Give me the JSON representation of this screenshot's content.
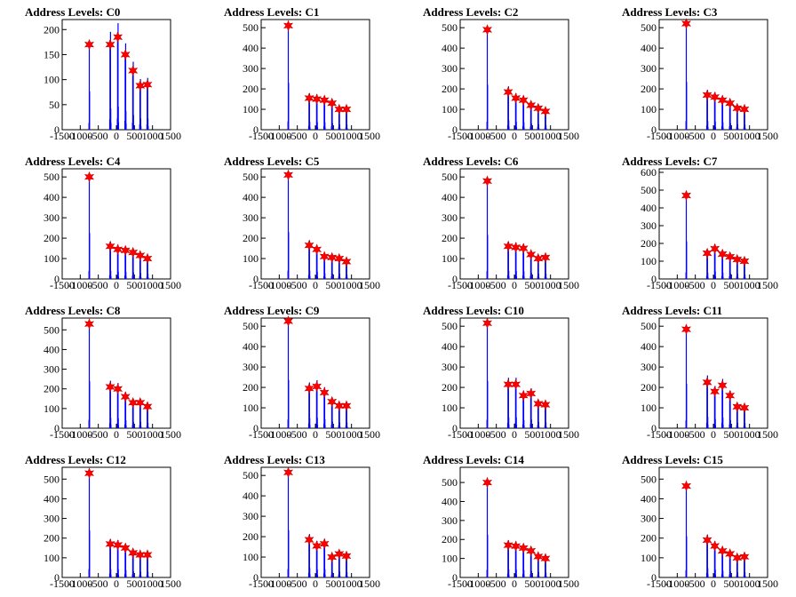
{
  "chart_data": [
    {
      "type": "bar",
      "title": "Address Levels: C0",
      "xlim": [
        -1500,
        1500
      ],
      "ylim": [
        0,
        220
      ],
      "yticks": [
        0,
        50,
        100,
        150,
        200
      ],
      "xticks": [
        -1500,
        -1000,
        -500,
        0,
        500,
        1000,
        1500
      ],
      "peaks_x": [
        -750,
        -170,
        40,
        250,
        460,
        660,
        860
      ],
      "peaks_y": [
        170,
        170,
        185,
        150,
        118,
        88,
        90
      ]
    },
    {
      "type": "bar",
      "title": "Address Levels: C1",
      "xlim": [
        -1500,
        1500
      ],
      "ylim": [
        0,
        540
      ],
      "yticks": [
        0,
        100,
        200,
        300,
        400,
        500
      ],
      "xticks": [
        -1500,
        -1000,
        -500,
        0,
        500,
        1000,
        1500
      ],
      "peaks_x": [
        -750,
        -170,
        40,
        250,
        460,
        660,
        860
      ],
      "peaks_y": [
        510,
        155,
        150,
        145,
        130,
        100,
        100
      ]
    },
    {
      "type": "bar",
      "title": "Address Levels: C2",
      "xlim": [
        -1500,
        1500
      ],
      "ylim": [
        0,
        540
      ],
      "yticks": [
        0,
        100,
        200,
        300,
        400,
        500
      ],
      "xticks": [
        -1500,
        -1000,
        -500,
        0,
        500,
        1000,
        1500
      ],
      "peaks_x": [
        -750,
        -170,
        40,
        250,
        460,
        660,
        860
      ],
      "peaks_y": [
        490,
        185,
        155,
        145,
        120,
        105,
        90
      ]
    },
    {
      "type": "bar",
      "title": "Address Levels: C3",
      "xlim": [
        -1500,
        1500
      ],
      "ylim": [
        0,
        540
      ],
      "yticks": [
        0,
        100,
        200,
        300,
        400,
        500
      ],
      "xticks": [
        -1500,
        -1000,
        -500,
        0,
        500,
        1000,
        1500
      ],
      "peaks_x": [
        -750,
        -170,
        40,
        250,
        460,
        660,
        860
      ],
      "peaks_y": [
        520,
        170,
        160,
        145,
        130,
        105,
        100
      ]
    },
    {
      "type": "bar",
      "title": "Address Levels: C4",
      "xlim": [
        -1500,
        1500
      ],
      "ylim": [
        0,
        540
      ],
      "yticks": [
        0,
        100,
        200,
        300,
        400,
        500
      ],
      "xticks": [
        -1500,
        -1000,
        -500,
        0,
        500,
        1000,
        1500
      ],
      "peaks_x": [
        -750,
        -170,
        40,
        250,
        460,
        660,
        860
      ],
      "peaks_y": [
        500,
        160,
        145,
        140,
        130,
        115,
        100
      ]
    },
    {
      "type": "bar",
      "title": "Address Levels: C5",
      "xlim": [
        -1500,
        1500
      ],
      "ylim": [
        0,
        540
      ],
      "yticks": [
        0,
        100,
        200,
        300,
        400,
        500
      ],
      "xticks": [
        -1500,
        -1000,
        -500,
        0,
        500,
        1000,
        1500
      ],
      "peaks_x": [
        -750,
        -170,
        40,
        250,
        460,
        660,
        860
      ],
      "peaks_y": [
        510,
        165,
        145,
        110,
        105,
        100,
        85
      ]
    },
    {
      "type": "bar",
      "title": "Address Levels: C6",
      "xlim": [
        -1500,
        1500
      ],
      "ylim": [
        0,
        540
      ],
      "yticks": [
        0,
        100,
        200,
        300,
        400,
        500
      ],
      "xticks": [
        -1500,
        -1000,
        -500,
        0,
        500,
        1000,
        1500
      ],
      "peaks_x": [
        -750,
        -170,
        40,
        250,
        460,
        660,
        860
      ],
      "peaks_y": [
        480,
        160,
        155,
        150,
        120,
        100,
        105
      ]
    },
    {
      "type": "bar",
      "title": "Address Levels: C7",
      "xlim": [
        -1500,
        1500
      ],
      "ylim": [
        0,
        620
      ],
      "yticks": [
        0,
        100,
        200,
        300,
        400,
        500,
        600
      ],
      "xticks": [
        -1500,
        -1000,
        -500,
        0,
        500,
        1000,
        1500
      ],
      "peaks_x": [
        -750,
        -170,
        40,
        250,
        460,
        660,
        860
      ],
      "peaks_y": [
        470,
        145,
        170,
        140,
        125,
        110,
        100
      ]
    },
    {
      "type": "bar",
      "title": "Address Levels: C8",
      "xlim": [
        -1500,
        1500
      ],
      "ylim": [
        0,
        560
      ],
      "yticks": [
        0,
        100,
        200,
        300,
        400,
        500
      ],
      "xticks": [
        -1500,
        -1000,
        -500,
        0,
        500,
        1000,
        1500
      ],
      "peaks_x": [
        -750,
        -170,
        40,
        250,
        460,
        660,
        860
      ],
      "peaks_y": [
        530,
        210,
        200,
        160,
        130,
        130,
        110
      ]
    },
    {
      "type": "bar",
      "title": "Address Levels: C9",
      "xlim": [
        -1500,
        1500
      ],
      "ylim": [
        0,
        540
      ],
      "yticks": [
        0,
        100,
        200,
        300,
        400,
        500
      ],
      "xticks": [
        -1500,
        -1000,
        -500,
        0,
        500,
        1000,
        1500
      ],
      "peaks_x": [
        -750,
        -170,
        40,
        250,
        460,
        660,
        860
      ],
      "peaks_y": [
        525,
        195,
        205,
        175,
        130,
        110,
        110
      ]
    },
    {
      "type": "bar",
      "title": "Address Levels: C10",
      "xlim": [
        -1500,
        1500
      ],
      "ylim": [
        0,
        540
      ],
      "yticks": [
        0,
        100,
        200,
        300,
        400,
        500
      ],
      "xticks": [
        -1500,
        -1000,
        -500,
        0,
        500,
        1000,
        1500
      ],
      "peaks_x": [
        -750,
        -170,
        40,
        250,
        460,
        660,
        860
      ],
      "peaks_y": [
        515,
        215,
        215,
        160,
        170,
        120,
        115
      ]
    },
    {
      "type": "bar",
      "title": "Address Levels: C11",
      "xlim": [
        -1500,
        1500
      ],
      "ylim": [
        0,
        540
      ],
      "yticks": [
        0,
        100,
        200,
        300,
        400,
        500
      ],
      "xticks": [
        -1500,
        -1000,
        -500,
        0,
        500,
        1000,
        1500
      ],
      "peaks_x": [
        -750,
        -170,
        40,
        250,
        460,
        660,
        860
      ],
      "peaks_y": [
        485,
        225,
        180,
        210,
        160,
        105,
        100
      ]
    },
    {
      "type": "bar",
      "title": "Address Levels: C12",
      "xlim": [
        -1500,
        1500
      ],
      "ylim": [
        0,
        560
      ],
      "yticks": [
        0,
        100,
        200,
        300,
        400,
        500
      ],
      "xticks": [
        -1500,
        -1000,
        -500,
        0,
        500,
        1000,
        1500
      ],
      "peaks_x": [
        -750,
        -170,
        40,
        250,
        460,
        660,
        860
      ],
      "peaks_y": [
        530,
        170,
        165,
        150,
        125,
        115,
        115
      ]
    },
    {
      "type": "bar",
      "title": "Address Levels: C13",
      "xlim": [
        -1500,
        1500
      ],
      "ylim": [
        0,
        540
      ],
      "yticks": [
        0,
        100,
        200,
        300,
        400,
        500
      ],
      "xticks": [
        -1500,
        -1000,
        -500,
        0,
        500,
        1000,
        1500
      ],
      "peaks_x": [
        -750,
        -170,
        40,
        250,
        460,
        660,
        860
      ],
      "peaks_y": [
        515,
        185,
        155,
        165,
        100,
        115,
        105
      ]
    },
    {
      "type": "bar",
      "title": "Address Levels: C14",
      "xlim": [
        -1500,
        1500
      ],
      "ylim": [
        0,
        580
      ],
      "yticks": [
        0,
        100,
        200,
        300,
        400,
        500
      ],
      "xticks": [
        -1500,
        -1000,
        -500,
        0,
        500,
        1000,
        1500
      ],
      "peaks_x": [
        -750,
        -170,
        40,
        250,
        460,
        660,
        860
      ],
      "peaks_y": [
        500,
        170,
        165,
        155,
        140,
        110,
        100
      ]
    },
    {
      "type": "bar",
      "title": "Address Levels: C15",
      "xlim": [
        -1500,
        1500
      ],
      "ylim": [
        0,
        560
      ],
      "yticks": [
        0,
        100,
        200,
        300,
        400,
        500
      ],
      "xticks": [
        -1500,
        -1000,
        -500,
        0,
        500,
        1000,
        1500
      ],
      "peaks_x": [
        -750,
        -170,
        40,
        250,
        460,
        660,
        860
      ],
      "peaks_y": [
        465,
        190,
        160,
        135,
        120,
        100,
        105
      ]
    }
  ],
  "colors": {
    "bars": "#0000ff",
    "markers": "#ff0000",
    "frame": "#000000"
  }
}
